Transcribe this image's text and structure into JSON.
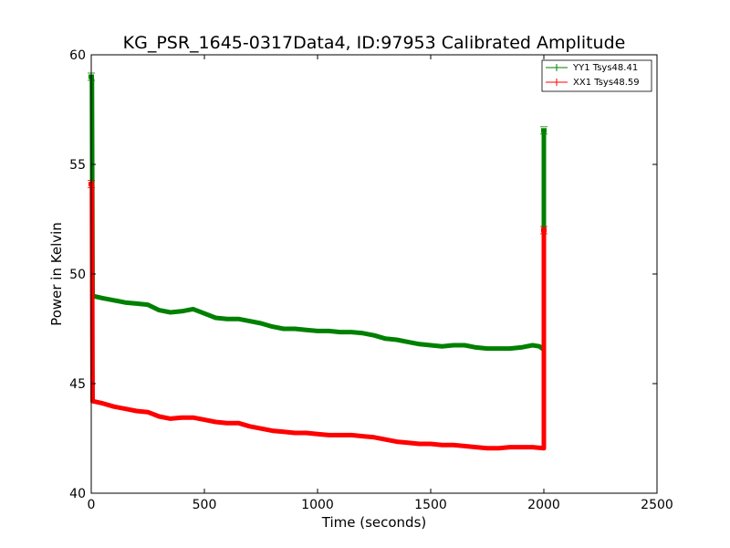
{
  "chart_data": {
    "type": "line",
    "title": "KG_PSR_1645-0317Data4, ID:97953 Calibrated Amplitude",
    "xlabel": "Time (seconds)",
    "ylabel": "Power in Kelvin",
    "xlim": [
      0,
      2500
    ],
    "ylim": [
      40,
      60
    ],
    "xticks": [
      "0",
      "500",
      "1000",
      "1500",
      "2000",
      "2500"
    ],
    "yticks": [
      "40",
      "45",
      "50",
      "55",
      "60"
    ],
    "grid": false,
    "legend_position": "top-right",
    "series": [
      {
        "name": "YY1 Tsys48.41",
        "color": "#008000",
        "points": [
          [
            0,
            59.0
          ],
          [
            3,
            58.9
          ],
          [
            6,
            49.0
          ],
          [
            50,
            48.9
          ],
          [
            100,
            48.8
          ],
          [
            150,
            48.7
          ],
          [
            200,
            48.65
          ],
          [
            250,
            48.6
          ],
          [
            300,
            48.35
          ],
          [
            350,
            48.25
          ],
          [
            400,
            48.3
          ],
          [
            450,
            48.4
          ],
          [
            500,
            48.2
          ],
          [
            550,
            48.0
          ],
          [
            600,
            47.95
          ],
          [
            650,
            47.95
          ],
          [
            700,
            47.85
          ],
          [
            750,
            47.75
          ],
          [
            800,
            47.6
          ],
          [
            850,
            47.5
          ],
          [
            900,
            47.5
          ],
          [
            950,
            47.45
          ],
          [
            1000,
            47.4
          ],
          [
            1050,
            47.4
          ],
          [
            1100,
            47.35
          ],
          [
            1150,
            47.35
          ],
          [
            1200,
            47.3
          ],
          [
            1250,
            47.2
          ],
          [
            1300,
            47.05
          ],
          [
            1350,
            47.0
          ],
          [
            1400,
            46.9
          ],
          [
            1450,
            46.8
          ],
          [
            1500,
            46.75
          ],
          [
            1550,
            46.7
          ],
          [
            1600,
            46.75
          ],
          [
            1650,
            46.75
          ],
          [
            1700,
            46.65
          ],
          [
            1750,
            46.6
          ],
          [
            1800,
            46.6
          ],
          [
            1850,
            46.6
          ],
          [
            1900,
            46.65
          ],
          [
            1950,
            46.75
          ],
          [
            1980,
            46.7
          ],
          [
            2000,
            46.55
          ],
          [
            2000,
            56.55
          ]
        ]
      },
      {
        "name": "XX1 Tsys48.59",
        "color": "#ff0000",
        "points": [
          [
            0,
            54.1
          ],
          [
            3,
            54.1
          ],
          [
            6,
            44.2
          ],
          [
            50,
            44.1
          ],
          [
            100,
            43.95
          ],
          [
            150,
            43.85
          ],
          [
            200,
            43.75
          ],
          [
            250,
            43.7
          ],
          [
            300,
            43.5
          ],
          [
            350,
            43.4
          ],
          [
            400,
            43.45
          ],
          [
            450,
            43.45
          ],
          [
            500,
            43.35
          ],
          [
            550,
            43.25
          ],
          [
            600,
            43.2
          ],
          [
            650,
            43.2
          ],
          [
            700,
            43.05
          ],
          [
            750,
            42.95
          ],
          [
            800,
            42.85
          ],
          [
            850,
            42.8
          ],
          [
            900,
            42.75
          ],
          [
            950,
            42.75
          ],
          [
            1000,
            42.7
          ],
          [
            1050,
            42.65
          ],
          [
            1100,
            42.65
          ],
          [
            1150,
            42.65
          ],
          [
            1200,
            42.6
          ],
          [
            1250,
            42.55
          ],
          [
            1300,
            42.45
          ],
          [
            1350,
            42.35
          ],
          [
            1400,
            42.3
          ],
          [
            1450,
            42.25
          ],
          [
            1500,
            42.25
          ],
          [
            1550,
            42.2
          ],
          [
            1600,
            42.2
          ],
          [
            1650,
            42.15
          ],
          [
            1700,
            42.1
          ],
          [
            1750,
            42.05
          ],
          [
            1800,
            42.05
          ],
          [
            1850,
            42.1
          ],
          [
            1900,
            42.1
          ],
          [
            1950,
            42.1
          ],
          [
            2000,
            42.05
          ],
          [
            2000,
            52.0
          ]
        ]
      }
    ]
  }
}
